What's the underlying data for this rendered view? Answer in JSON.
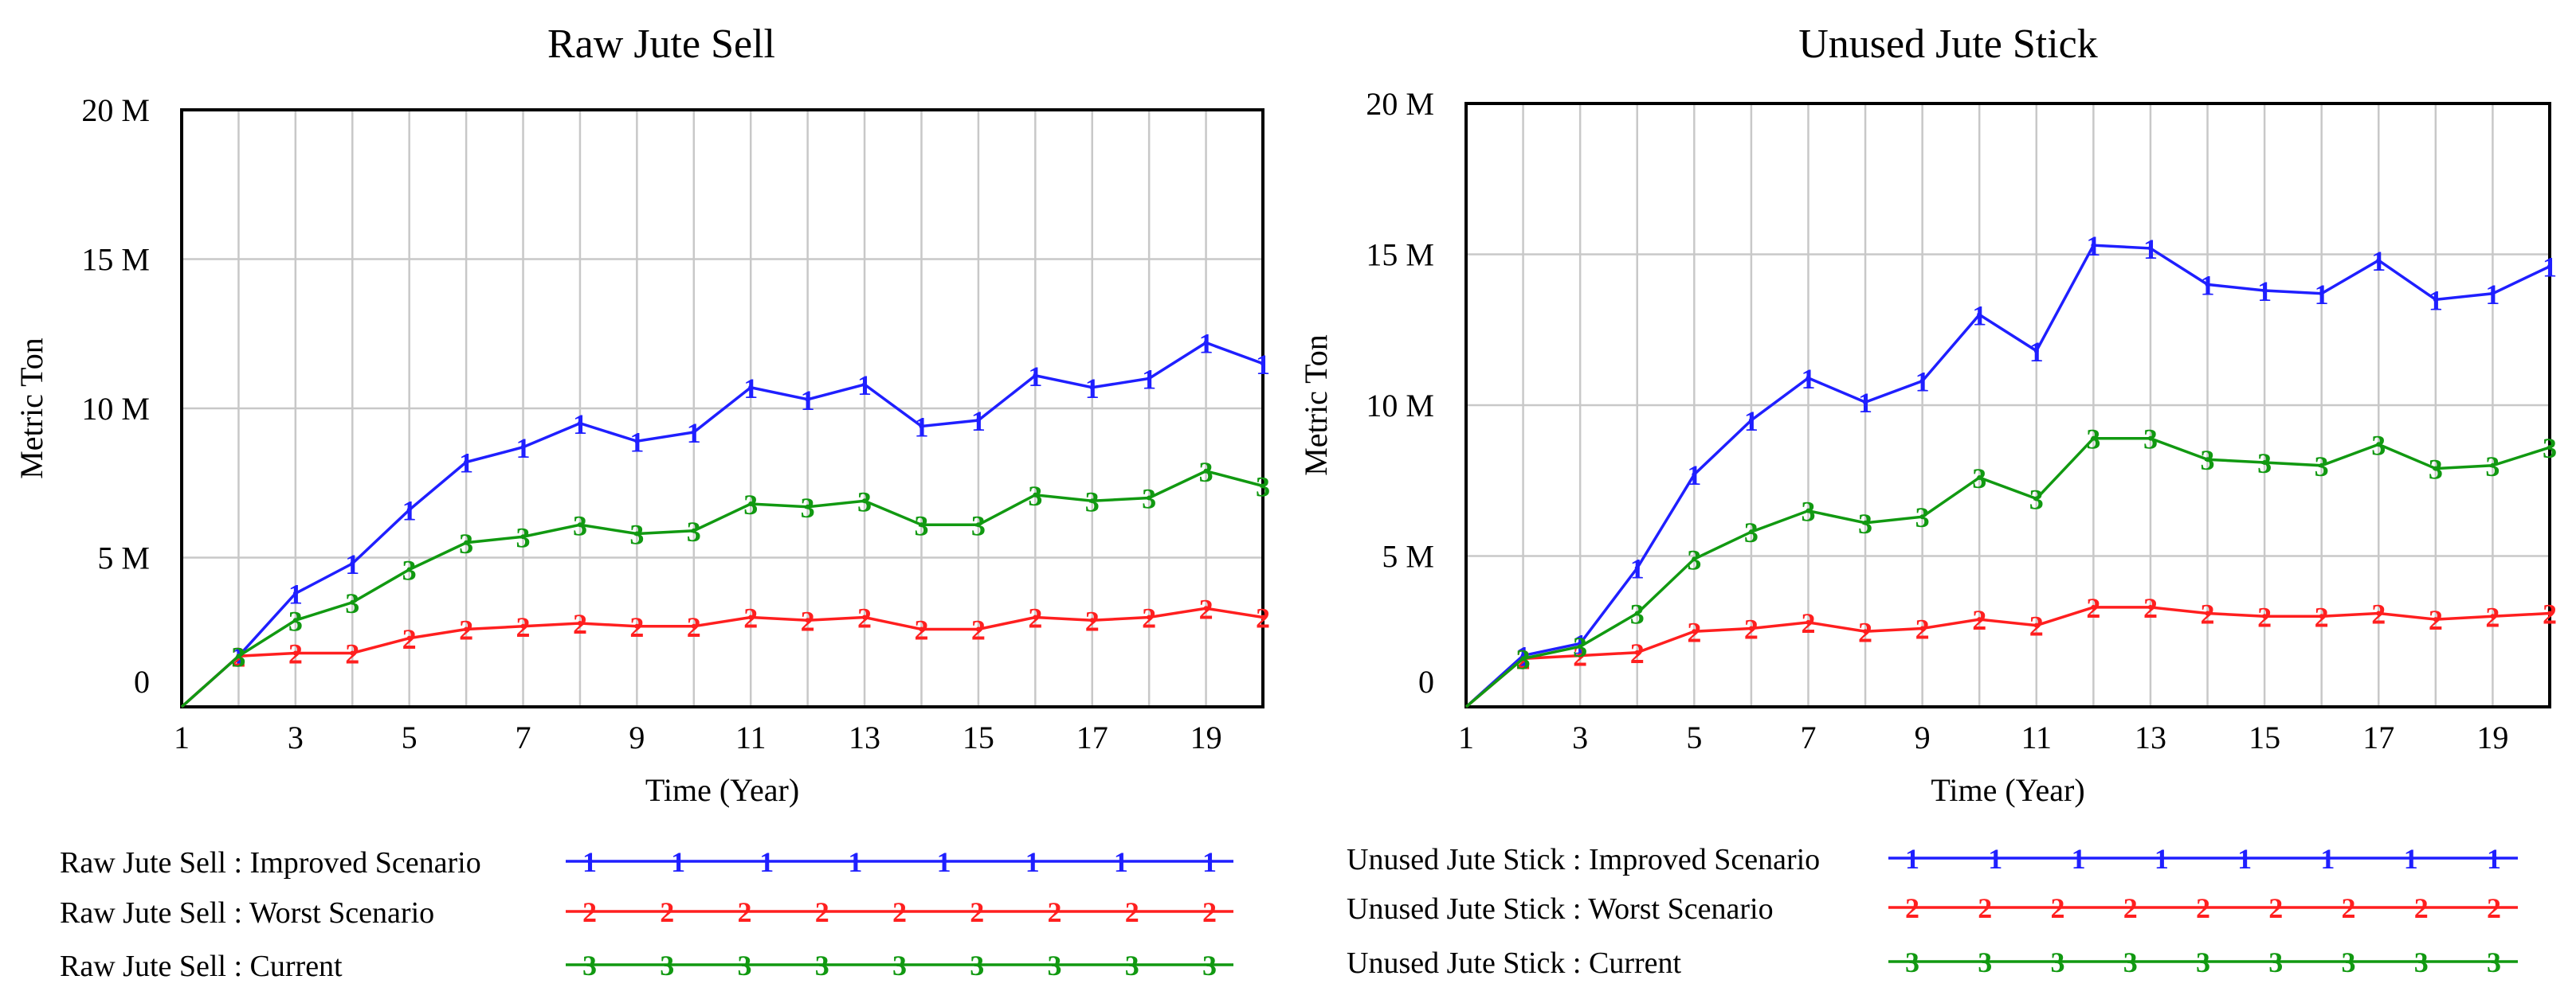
{
  "chart_data": [
    {
      "type": "line",
      "title": "Raw Jute Sell",
      "xlabel": "Time (Year)",
      "ylabel": "Metric Ton",
      "xlim": [
        1,
        20
      ],
      "ylim": [
        0,
        20000000
      ],
      "grid": true,
      "x_ticks": [
        1,
        3,
        5,
        7,
        9,
        11,
        13,
        15,
        17,
        19
      ],
      "y_ticks": [
        0,
        5000000,
        10000000,
        15000000,
        20000000
      ],
      "y_tick_labels": [
        "0",
        "5 M",
        "10 M",
        "15 M",
        "20 M"
      ],
      "x": [
        1,
        2,
        3,
        4,
        5,
        6,
        7,
        8,
        9,
        10,
        11,
        12,
        13,
        14,
        15,
        16,
        17,
        18,
        19,
        20
      ],
      "series": [
        {
          "name": "Raw Jute Sell : Improved Scenario",
          "marker": "1",
          "color": "#1f1fff",
          "values": [
            0,
            1700000,
            3800000,
            4800000,
            6600000,
            8200000,
            8700000,
            9500000,
            8900000,
            9200000,
            10700000,
            10300000,
            10800000,
            9400000,
            9600000,
            11100000,
            10700000,
            11000000,
            12200000,
            11500000
          ]
        },
        {
          "name": "Raw Jute Sell : Worst Scenario",
          "marker": "2",
          "color": "#ff1f1f",
          "values": [
            0,
            1700000,
            1800000,
            1800000,
            2300000,
            2600000,
            2700000,
            2800000,
            2700000,
            2700000,
            3000000,
            2900000,
            3000000,
            2600000,
            2600000,
            3000000,
            2900000,
            3000000,
            3300000,
            3000000
          ]
        },
        {
          "name": "Raw Jute Sell : Current",
          "marker": "3",
          "color": "#119911",
          "values": [
            0,
            1700000,
            2900000,
            3500000,
            4600000,
            5500000,
            5700000,
            6100000,
            5800000,
            5900000,
            6800000,
            6700000,
            6900000,
            6100000,
            6100000,
            7100000,
            6900000,
            7000000,
            7900000,
            7400000
          ]
        }
      ]
    },
    {
      "type": "line",
      "title": "Unused Jute Stick",
      "xlabel": "Time (Year)",
      "ylabel": "Metric Ton",
      "xlim": [
        1,
        20
      ],
      "ylim": [
        0,
        20000000
      ],
      "grid": true,
      "x_ticks": [
        1,
        3,
        5,
        7,
        9,
        11,
        13,
        15,
        17,
        19
      ],
      "y_ticks": [
        0,
        5000000,
        10000000,
        15000000,
        20000000
      ],
      "y_tick_labels": [
        "0",
        "5 M",
        "10 M",
        "15 M",
        "20 M"
      ],
      "x": [
        1,
        2,
        3,
        4,
        5,
        6,
        7,
        8,
        9,
        10,
        11,
        12,
        13,
        14,
        15,
        16,
        17,
        18,
        19,
        20
      ],
      "series": [
        {
          "name": "Unused Jute Stick : Improved Scenario",
          "marker": "1",
          "color": "#1f1fff",
          "values": [
            0,
            1700000,
            2100000,
            4600000,
            7700000,
            9500000,
            10900000,
            10100000,
            10800000,
            13000000,
            11800000,
            15300000,
            15200000,
            14000000,
            13800000,
            13700000,
            14800000,
            13500000,
            13700000,
            14600000
          ]
        },
        {
          "name": "Unused Jute Stick : Worst Scenario",
          "marker": "2",
          "color": "#ff1f1f",
          "values": [
            0,
            1600000,
            1700000,
            1800000,
            2500000,
            2600000,
            2800000,
            2500000,
            2600000,
            2900000,
            2700000,
            3300000,
            3300000,
            3100000,
            3000000,
            3000000,
            3100000,
            2900000,
            3000000,
            3100000
          ]
        },
        {
          "name": "Unused Jute Stick : Current",
          "marker": "3",
          "color": "#119911",
          "values": [
            0,
            1600000,
            2000000,
            3100000,
            4900000,
            5800000,
            6500000,
            6100000,
            6300000,
            7600000,
            6900000,
            8900000,
            8900000,
            8200000,
            8100000,
            8000000,
            8700000,
            7900000,
            8000000,
            8600000
          ]
        }
      ]
    }
  ]
}
